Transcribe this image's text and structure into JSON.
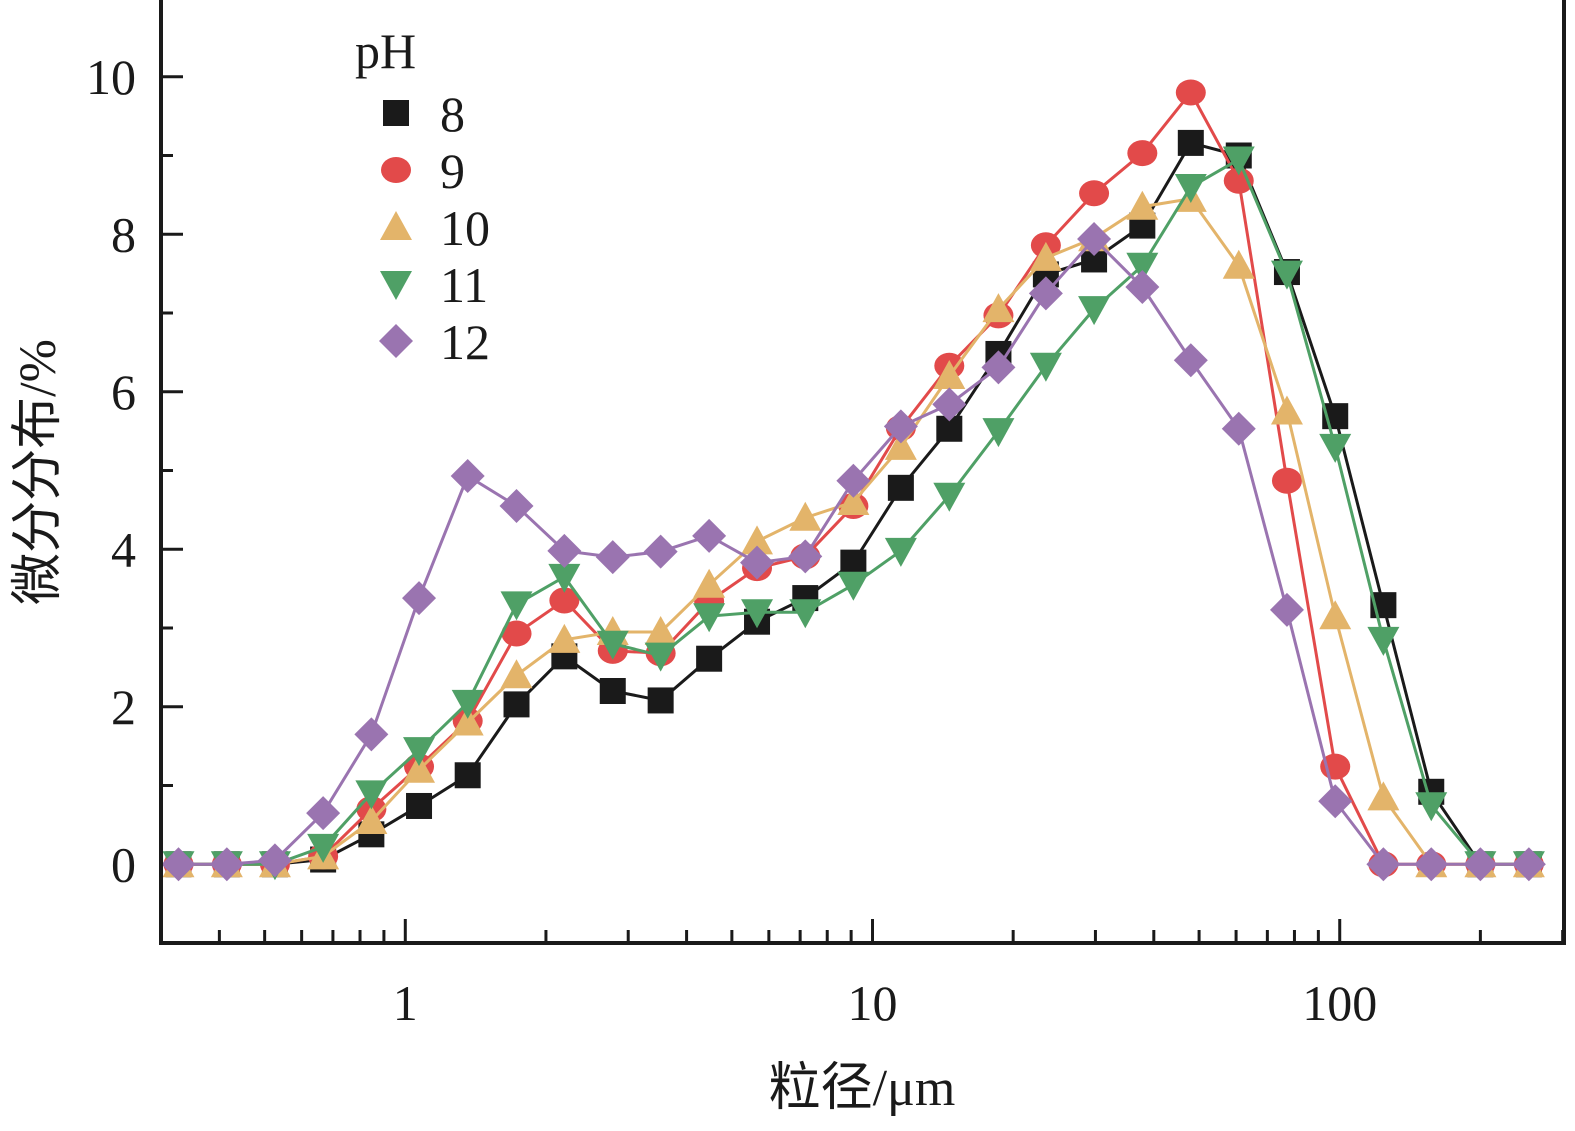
{
  "chart_data": {
    "type": "line",
    "title": "",
    "xlabel": "粒径/μm",
    "ylabel": "微分分布/%",
    "xscale": "log",
    "xlim": [
      0.3,
      302
    ],
    "ylim": [
      -1,
      11
    ],
    "xticks": [
      {
        "value": 1,
        "label": "1"
      },
      {
        "value": 10,
        "label": "10"
      },
      {
        "value": 100,
        "label": "100"
      }
    ],
    "yticks": [
      {
        "value": 0,
        "label": "0"
      },
      {
        "value": 2,
        "label": "2"
      },
      {
        "value": 4,
        "label": "4"
      },
      {
        "value": 6,
        "label": "6"
      },
      {
        "value": 8,
        "label": "8"
      },
      {
        "value": 10,
        "label": "10"
      }
    ],
    "grid": false,
    "legend": {
      "title": "pH",
      "placement": "top-left"
    },
    "x": [
      0.327,
      0.415,
      0.526,
      0.667,
      0.846,
      1.07,
      1.36,
      1.73,
      2.19,
      2.78,
      3.52,
      4.47,
      5.66,
      7.18,
      9.1,
      11.5,
      14.6,
      18.6,
      23.5,
      29.8,
      37.8,
      48,
      60.8,
      77.1,
      97.8,
      124,
      157,
      200,
      254
    ],
    "series": [
      {
        "name": "8",
        "color": "#1a1a1a",
        "marker": "square",
        "values": [
          0,
          0,
          0,
          0.06,
          0.38,
          0.74,
          1.13,
          2.03,
          2.64,
          2.2,
          2.08,
          2.61,
          3.08,
          3.38,
          3.83,
          4.78,
          5.53,
          6.48,
          7.49,
          7.68,
          8.11,
          9.16,
          9.0,
          7.52,
          5.69,
          3.29,
          0.92,
          0,
          0
        ]
      },
      {
        "name": "9",
        "color": "#e24a4a",
        "marker": "circle",
        "values": [
          0,
          0,
          0,
          0.1,
          0.7,
          1.24,
          1.82,
          2.93,
          3.35,
          2.71,
          2.68,
          3.34,
          3.76,
          3.91,
          4.55,
          5.54,
          6.33,
          6.97,
          7.86,
          8.52,
          9.03,
          9.8,
          8.68,
          4.87,
          1.24,
          0,
          0,
          0,
          0
        ]
      },
      {
        "name": "10",
        "color": "#e3b46a",
        "marker": "triangle-up",
        "values": [
          0,
          0,
          0,
          0.1,
          0.55,
          1.2,
          1.8,
          2.4,
          2.85,
          2.95,
          2.95,
          3.55,
          4.1,
          4.4,
          4.6,
          5.3,
          6.2,
          7.05,
          7.7,
          7.95,
          8.35,
          8.45,
          7.6,
          5.75,
          3.15,
          0.85,
          0,
          0,
          0
        ]
      },
      {
        "name": "11",
        "color": "#4fa066",
        "marker": "triangle-down",
        "values": [
          0,
          0,
          0,
          0.22,
          0.9,
          1.45,
          2.05,
          3.3,
          3.65,
          2.8,
          2.65,
          3.15,
          3.2,
          3.2,
          3.55,
          3.98,
          4.68,
          5.5,
          6.33,
          7.05,
          7.6,
          8.6,
          8.95,
          7.5,
          5.3,
          2.85,
          0.75,
          0,
          0
        ]
      },
      {
        "name": "12",
        "color": "#9a74b0",
        "marker": "diamond",
        "values": [
          0,
          0,
          0.05,
          0.65,
          1.65,
          3.38,
          4.93,
          4.55,
          3.98,
          3.9,
          3.97,
          4.17,
          3.83,
          3.91,
          4.87,
          5.56,
          5.84,
          6.31,
          7.25,
          7.94,
          7.33,
          6.4,
          5.53,
          3.23,
          0.8,
          0,
          0,
          0,
          0
        ]
      }
    ]
  }
}
